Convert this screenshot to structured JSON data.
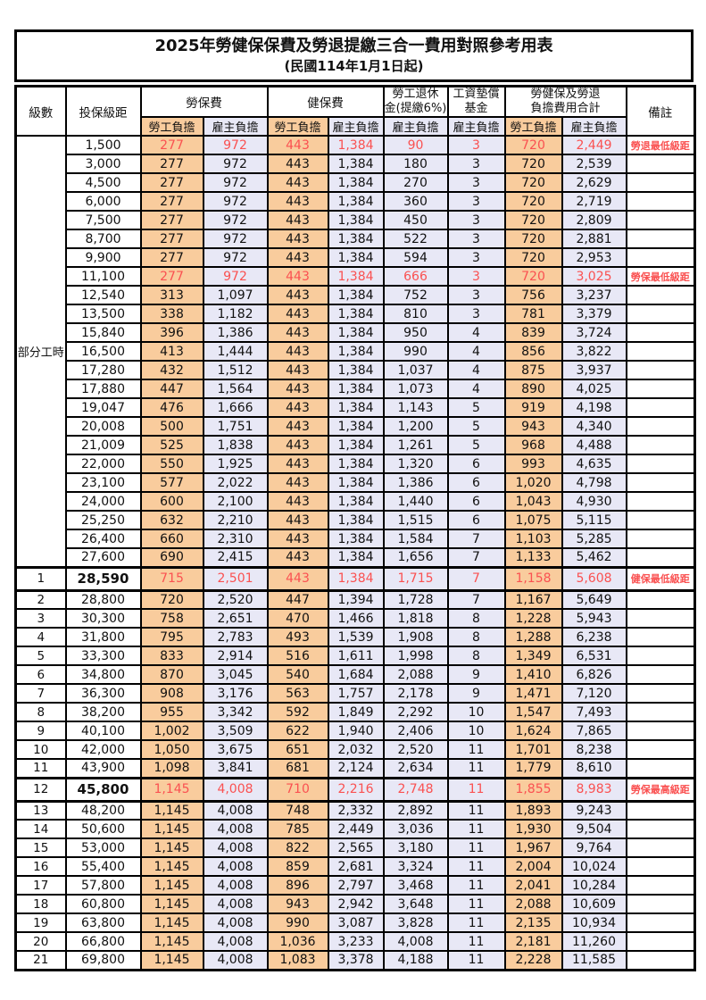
{
  "title": "2025年勞健保保費及勞退提繳三合一費用對照參考用表",
  "subtitle": "(民國114年1月1日起)",
  "colors": {
    "employee_bg": "#f9cc9d",
    "employer_bg": "#e8e8f6",
    "highlight_red": "#fa5151",
    "border": "#000000"
  },
  "header": {
    "level": "級數",
    "bracket": "投保級距",
    "labor_ins": "勞保費",
    "health_ins": "健保費",
    "pension_line1": "勞工退休",
    "pension_line2": "金(提繳6%)",
    "wage_fund_line1": "工資墊償",
    "wage_fund_line2": "基金",
    "total_line1": "勞健保及勞退",
    "total_line2": "負擔費用合計",
    "remark": "備註",
    "employee": "勞工負擔",
    "employer": "雇主負擔"
  },
  "side_label": "部分工時",
  "rows": [
    {
      "level": null,
      "bracket": "1,500",
      "li_emp": "277",
      "li_er": "972",
      "hi_emp": "443",
      "hi_er": "1,384",
      "pension": "90",
      "fund": "3",
      "tot_emp": "720",
      "tot_er": "2,449",
      "remark": "勞退最低級距",
      "red": true,
      "emph": false
    },
    {
      "level": null,
      "bracket": "3,000",
      "li_emp": "277",
      "li_er": "972",
      "hi_emp": "443",
      "hi_er": "1,384",
      "pension": "180",
      "fund": "3",
      "tot_emp": "720",
      "tot_er": "2,539",
      "remark": "",
      "red": false,
      "emph": false
    },
    {
      "level": null,
      "bracket": "4,500",
      "li_emp": "277",
      "li_er": "972",
      "hi_emp": "443",
      "hi_er": "1,384",
      "pension": "270",
      "fund": "3",
      "tot_emp": "720",
      "tot_er": "2,629",
      "remark": "",
      "red": false,
      "emph": false
    },
    {
      "level": null,
      "bracket": "6,000",
      "li_emp": "277",
      "li_er": "972",
      "hi_emp": "443",
      "hi_er": "1,384",
      "pension": "360",
      "fund": "3",
      "tot_emp": "720",
      "tot_er": "2,719",
      "remark": "",
      "red": false,
      "emph": false
    },
    {
      "level": null,
      "bracket": "7,500",
      "li_emp": "277",
      "li_er": "972",
      "hi_emp": "443",
      "hi_er": "1,384",
      "pension": "450",
      "fund": "3",
      "tot_emp": "720",
      "tot_er": "2,809",
      "remark": "",
      "red": false,
      "emph": false
    },
    {
      "level": null,
      "bracket": "8,700",
      "li_emp": "277",
      "li_er": "972",
      "hi_emp": "443",
      "hi_er": "1,384",
      "pension": "522",
      "fund": "3",
      "tot_emp": "720",
      "tot_er": "2,881",
      "remark": "",
      "red": false,
      "emph": false
    },
    {
      "level": null,
      "bracket": "9,900",
      "li_emp": "277",
      "li_er": "972",
      "hi_emp": "443",
      "hi_er": "1,384",
      "pension": "594",
      "fund": "3",
      "tot_emp": "720",
      "tot_er": "2,953",
      "remark": "",
      "red": false,
      "emph": false
    },
    {
      "level": null,
      "bracket": "11,100",
      "li_emp": "277",
      "li_er": "972",
      "hi_emp": "443",
      "hi_er": "1,384",
      "pension": "666",
      "fund": "3",
      "tot_emp": "720",
      "tot_er": "3,025",
      "remark": "勞保最低級距",
      "red": true,
      "emph": false
    },
    {
      "level": null,
      "bracket": "12,540",
      "li_emp": "313",
      "li_er": "1,097",
      "hi_emp": "443",
      "hi_er": "1,384",
      "pension": "752",
      "fund": "3",
      "tot_emp": "756",
      "tot_er": "3,237",
      "remark": "",
      "red": false,
      "emph": false
    },
    {
      "level": null,
      "bracket": "13,500",
      "li_emp": "338",
      "li_er": "1,182",
      "hi_emp": "443",
      "hi_er": "1,384",
      "pension": "810",
      "fund": "3",
      "tot_emp": "781",
      "tot_er": "3,379",
      "remark": "",
      "red": false,
      "emph": false
    },
    {
      "level": null,
      "bracket": "15,840",
      "li_emp": "396",
      "li_er": "1,386",
      "hi_emp": "443",
      "hi_er": "1,384",
      "pension": "950",
      "fund": "4",
      "tot_emp": "839",
      "tot_er": "3,724",
      "remark": "",
      "red": false,
      "emph": false
    },
    {
      "level": null,
      "bracket": "16,500",
      "li_emp": "413",
      "li_er": "1,444",
      "hi_emp": "443",
      "hi_er": "1,384",
      "pension": "990",
      "fund": "4",
      "tot_emp": "856",
      "tot_er": "3,822",
      "remark": "",
      "red": false,
      "emph": false
    },
    {
      "level": null,
      "bracket": "17,280",
      "li_emp": "432",
      "li_er": "1,512",
      "hi_emp": "443",
      "hi_er": "1,384",
      "pension": "1,037",
      "fund": "4",
      "tot_emp": "875",
      "tot_er": "3,937",
      "remark": "",
      "red": false,
      "emph": false
    },
    {
      "level": null,
      "bracket": "17,880",
      "li_emp": "447",
      "li_er": "1,564",
      "hi_emp": "443",
      "hi_er": "1,384",
      "pension": "1,073",
      "fund": "4",
      "tot_emp": "890",
      "tot_er": "4,025",
      "remark": "",
      "red": false,
      "emph": false
    },
    {
      "level": null,
      "bracket": "19,047",
      "li_emp": "476",
      "li_er": "1,666",
      "hi_emp": "443",
      "hi_er": "1,384",
      "pension": "1,143",
      "fund": "5",
      "tot_emp": "919",
      "tot_er": "4,198",
      "remark": "",
      "red": false,
      "emph": false
    },
    {
      "level": null,
      "bracket": "20,008",
      "li_emp": "500",
      "li_er": "1,751",
      "hi_emp": "443",
      "hi_er": "1,384",
      "pension": "1,200",
      "fund": "5",
      "tot_emp": "943",
      "tot_er": "4,340",
      "remark": "",
      "red": false,
      "emph": false
    },
    {
      "level": null,
      "bracket": "21,009",
      "li_emp": "525",
      "li_er": "1,838",
      "hi_emp": "443",
      "hi_er": "1,384",
      "pension": "1,261",
      "fund": "5",
      "tot_emp": "968",
      "tot_er": "4,488",
      "remark": "",
      "red": false,
      "emph": false
    },
    {
      "level": null,
      "bracket": "22,000",
      "li_emp": "550",
      "li_er": "1,925",
      "hi_emp": "443",
      "hi_er": "1,384",
      "pension": "1,320",
      "fund": "6",
      "tot_emp": "993",
      "tot_er": "4,635",
      "remark": "",
      "red": false,
      "emph": false
    },
    {
      "level": null,
      "bracket": "23,100",
      "li_emp": "577",
      "li_er": "2,022",
      "hi_emp": "443",
      "hi_er": "1,384",
      "pension": "1,386",
      "fund": "6",
      "tot_emp": "1,020",
      "tot_er": "4,798",
      "remark": "",
      "red": false,
      "emph": false
    },
    {
      "level": null,
      "bracket": "24,000",
      "li_emp": "600",
      "li_er": "2,100",
      "hi_emp": "443",
      "hi_er": "1,384",
      "pension": "1,440",
      "fund": "6",
      "tot_emp": "1,043",
      "tot_er": "4,930",
      "remark": "",
      "red": false,
      "emph": false
    },
    {
      "level": null,
      "bracket": "25,250",
      "li_emp": "632",
      "li_er": "2,210",
      "hi_emp": "443",
      "hi_er": "1,384",
      "pension": "1,515",
      "fund": "6",
      "tot_emp": "1,075",
      "tot_er": "5,115",
      "remark": "",
      "red": false,
      "emph": false
    },
    {
      "level": null,
      "bracket": "26,400",
      "li_emp": "660",
      "li_er": "2,310",
      "hi_emp": "443",
      "hi_er": "1,384",
      "pension": "1,584",
      "fund": "7",
      "tot_emp": "1,103",
      "tot_er": "5,285",
      "remark": "",
      "red": false,
      "emph": false
    },
    {
      "level": null,
      "bracket": "27,600",
      "li_emp": "690",
      "li_er": "2,415",
      "hi_emp": "443",
      "hi_er": "1,384",
      "pension": "1,656",
      "fund": "7",
      "tot_emp": "1,133",
      "tot_er": "5,462",
      "remark": "",
      "red": false,
      "emph": false
    },
    {
      "level": "1",
      "bracket": "28,590",
      "li_emp": "715",
      "li_er": "2,501",
      "hi_emp": "443",
      "hi_er": "1,384",
      "pension": "1,715",
      "fund": "7",
      "tot_emp": "1,158",
      "tot_er": "5,608",
      "remark": "健保最低級距",
      "red": true,
      "emph": true
    },
    {
      "level": "2",
      "bracket": "28,800",
      "li_emp": "720",
      "li_er": "2,520",
      "hi_emp": "447",
      "hi_er": "1,394",
      "pension": "1,728",
      "fund": "7",
      "tot_emp": "1,167",
      "tot_er": "5,649",
      "remark": "",
      "red": false,
      "emph": false
    },
    {
      "level": "3",
      "bracket": "30,300",
      "li_emp": "758",
      "li_er": "2,651",
      "hi_emp": "470",
      "hi_er": "1,466",
      "pension": "1,818",
      "fund": "8",
      "tot_emp": "1,228",
      "tot_er": "5,943",
      "remark": "",
      "red": false,
      "emph": false
    },
    {
      "level": "4",
      "bracket": "31,800",
      "li_emp": "795",
      "li_er": "2,783",
      "hi_emp": "493",
      "hi_er": "1,539",
      "pension": "1,908",
      "fund": "8",
      "tot_emp": "1,288",
      "tot_er": "6,238",
      "remark": "",
      "red": false,
      "emph": false
    },
    {
      "level": "5",
      "bracket": "33,300",
      "li_emp": "833",
      "li_er": "2,914",
      "hi_emp": "516",
      "hi_er": "1,611",
      "pension": "1,998",
      "fund": "8",
      "tot_emp": "1,349",
      "tot_er": "6,531",
      "remark": "",
      "red": false,
      "emph": false
    },
    {
      "level": "6",
      "bracket": "34,800",
      "li_emp": "870",
      "li_er": "3,045",
      "hi_emp": "540",
      "hi_er": "1,684",
      "pension": "2,088",
      "fund": "9",
      "tot_emp": "1,410",
      "tot_er": "6,826",
      "remark": "",
      "red": false,
      "emph": false
    },
    {
      "level": "7",
      "bracket": "36,300",
      "li_emp": "908",
      "li_er": "3,176",
      "hi_emp": "563",
      "hi_er": "1,757",
      "pension": "2,178",
      "fund": "9",
      "tot_emp": "1,471",
      "tot_er": "7,120",
      "remark": "",
      "red": false,
      "emph": false
    },
    {
      "level": "8",
      "bracket": "38,200",
      "li_emp": "955",
      "li_er": "3,342",
      "hi_emp": "592",
      "hi_er": "1,849",
      "pension": "2,292",
      "fund": "10",
      "tot_emp": "1,547",
      "tot_er": "7,493",
      "remark": "",
      "red": false,
      "emph": false
    },
    {
      "level": "9",
      "bracket": "40,100",
      "li_emp": "1,002",
      "li_er": "3,509",
      "hi_emp": "622",
      "hi_er": "1,940",
      "pension": "2,406",
      "fund": "10",
      "tot_emp": "1,624",
      "tot_er": "7,865",
      "remark": "",
      "red": false,
      "emph": false
    },
    {
      "level": "10",
      "bracket": "42,000",
      "li_emp": "1,050",
      "li_er": "3,675",
      "hi_emp": "651",
      "hi_er": "2,032",
      "pension": "2,520",
      "fund": "11",
      "tot_emp": "1,701",
      "tot_er": "8,238",
      "remark": "",
      "red": false,
      "emph": false
    },
    {
      "level": "11",
      "bracket": "43,900",
      "li_emp": "1,098",
      "li_er": "3,841",
      "hi_emp": "681",
      "hi_er": "2,124",
      "pension": "2,634",
      "fund": "11",
      "tot_emp": "1,779",
      "tot_er": "8,610",
      "remark": "",
      "red": false,
      "emph": false
    },
    {
      "level": "12",
      "bracket": "45,800",
      "li_emp": "1,145",
      "li_er": "4,008",
      "hi_emp": "710",
      "hi_er": "2,216",
      "pension": "2,748",
      "fund": "11",
      "tot_emp": "1,855",
      "tot_er": "8,983",
      "remark": "勞保最高級距",
      "red": true,
      "emph": true
    },
    {
      "level": "13",
      "bracket": "48,200",
      "li_emp": "1,145",
      "li_er": "4,008",
      "hi_emp": "748",
      "hi_er": "2,332",
      "pension": "2,892",
      "fund": "11",
      "tot_emp": "1,893",
      "tot_er": "9,243",
      "remark": "",
      "red": false,
      "emph": false
    },
    {
      "level": "14",
      "bracket": "50,600",
      "li_emp": "1,145",
      "li_er": "4,008",
      "hi_emp": "785",
      "hi_er": "2,449",
      "pension": "3,036",
      "fund": "11",
      "tot_emp": "1,930",
      "tot_er": "9,504",
      "remark": "",
      "red": false,
      "emph": false
    },
    {
      "level": "15",
      "bracket": "53,000",
      "li_emp": "1,145",
      "li_er": "4,008",
      "hi_emp": "822",
      "hi_er": "2,565",
      "pension": "3,180",
      "fund": "11",
      "tot_emp": "1,967",
      "tot_er": "9,764",
      "remark": "",
      "red": false,
      "emph": false
    },
    {
      "level": "16",
      "bracket": "55,400",
      "li_emp": "1,145",
      "li_er": "4,008",
      "hi_emp": "859",
      "hi_er": "2,681",
      "pension": "3,324",
      "fund": "11",
      "tot_emp": "2,004",
      "tot_er": "10,024",
      "remark": "",
      "red": false,
      "emph": false
    },
    {
      "level": "17",
      "bracket": "57,800",
      "li_emp": "1,145",
      "li_er": "4,008",
      "hi_emp": "896",
      "hi_er": "2,797",
      "pension": "3,468",
      "fund": "11",
      "tot_emp": "2,041",
      "tot_er": "10,284",
      "remark": "",
      "red": false,
      "emph": false
    },
    {
      "level": "18",
      "bracket": "60,800",
      "li_emp": "1,145",
      "li_er": "4,008",
      "hi_emp": "943",
      "hi_er": "2,942",
      "pension": "3,648",
      "fund": "11",
      "tot_emp": "2,088",
      "tot_er": "10,609",
      "remark": "",
      "red": false,
      "emph": false
    },
    {
      "level": "19",
      "bracket": "63,800",
      "li_emp": "1,145",
      "li_er": "4,008",
      "hi_emp": "990",
      "hi_er": "3,087",
      "pension": "3,828",
      "fund": "11",
      "tot_emp": "2,135",
      "tot_er": "10,934",
      "remark": "",
      "red": false,
      "emph": false
    },
    {
      "level": "20",
      "bracket": "66,800",
      "li_emp": "1,145",
      "li_er": "4,008",
      "hi_emp": "1,036",
      "hi_er": "3,233",
      "pension": "4,008",
      "fund": "11",
      "tot_emp": "2,181",
      "tot_er": "11,260",
      "remark": "",
      "red": false,
      "emph": false
    },
    {
      "level": "21",
      "bracket": "69,800",
      "li_emp": "1,145",
      "li_er": "4,008",
      "hi_emp": "1,083",
      "hi_er": "3,378",
      "pension": "4,188",
      "fund": "11",
      "tot_emp": "2,228",
      "tot_er": "11,585",
      "remark": "",
      "red": false,
      "emph": false
    }
  ]
}
